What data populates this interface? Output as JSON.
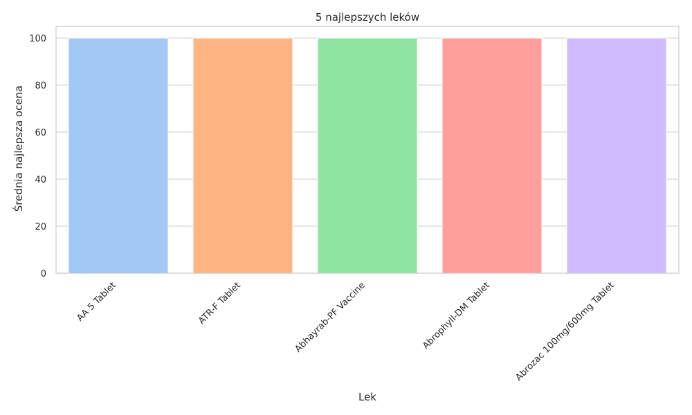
{
  "chart_data": {
    "type": "bar",
    "title": "5 najlepszych leków",
    "xlabel": "Lek",
    "ylabel": "Średnia najlepsza ocena",
    "categories": [
      "AA 5 Tablet",
      "ATR-F Tablet",
      "Abhayrab-PF Vaccine",
      "Abrophyll-DM Tablet",
      "Abrozac 100mg/600mg Tablet"
    ],
    "values": [
      100,
      100,
      100,
      100,
      100
    ],
    "ylim": [
      0,
      105
    ],
    "yticks": [
      "0",
      "20",
      "40",
      "60",
      "80",
      "100"
    ],
    "colors": [
      "#a1c9f4",
      "#ffb482",
      "#8de5a1",
      "#ff9f9b",
      "#d0bbff"
    ],
    "grid": true,
    "legend": "none"
  }
}
